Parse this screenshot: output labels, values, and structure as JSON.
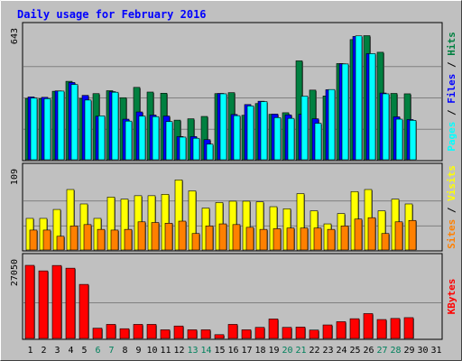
{
  "chart_data": {
    "type": "bar",
    "title": "Daily usage for February 2016",
    "categories": [
      "1",
      "2",
      "3",
      "4",
      "5",
      "6",
      "7",
      "8",
      "9",
      "10",
      "11",
      "12",
      "13",
      "14",
      "15",
      "16",
      "17",
      "18",
      "19",
      "20",
      "21",
      "22",
      "23",
      "24",
      "25",
      "26",
      "27",
      "28",
      "29",
      "30",
      "31"
    ],
    "weekend_days": [
      "6",
      "7",
      "13",
      "14",
      "20",
      "21",
      "27",
      "28"
    ],
    "panels": [
      {
        "id": "top",
        "ymax_label": "643",
        "ymax": 643,
        "series": [
          {
            "name": "Hits",
            "color": "#008040",
            "values": [
              314,
              313,
              351,
              402,
              314,
              339,
              354,
              318,
              371,
              347,
              341,
              203,
              210,
              222,
              339,
              344,
              228,
              288,
              233,
              241,
              507,
              357,
              327,
              493,
              616,
              636,
              551,
              340,
              338,
              null,
              null
            ]
          },
          {
            "name": "Files",
            "color": "#0000ff",
            "values": [
              322,
              320,
              353,
              396,
              330,
              223,
              349,
              208,
              245,
              229,
              224,
              119,
              119,
              103,
              340,
              232,
              283,
              300,
              234,
              230,
              233,
              210,
              359,
              492,
              632,
              544,
              342,
              220,
              206,
              null,
              null
            ]
          },
          {
            "name": "Pages",
            "color": "#00ffff",
            "values": [
              316,
              313,
              352,
              386,
              306,
              225,
              346,
              198,
              224,
              221,
              196,
              116,
              110,
              80,
              338,
              226,
              276,
              298,
              216,
              212,
              326,
              187,
              360,
              491,
              635,
              544,
              338,
              208,
              202,
              null,
              null
            ]
          }
        ]
      },
      {
        "id": "middle",
        "ymax_label": "109",
        "ymax": 109,
        "series": [
          {
            "name": "Visits",
            "color": "#ffff00",
            "values": [
              46,
              46,
              59,
              88,
              67,
              46,
              77,
              74,
              79,
              79,
              81,
              102,
              86,
              61,
              69,
              71,
              71,
              70,
              63,
              60,
              82,
              57,
              38,
              53,
              85,
              88,
              57,
              74,
              67,
              null,
              null
            ]
          },
          {
            "name": "Sites",
            "color": "#ff8000",
            "values": [
              29,
              29,
              20,
              35,
              37,
              30,
              29,
              30,
              41,
              40,
              39,
              42,
              24,
              35,
              38,
              37,
              33,
              30,
              31,
              32,
              32,
              32,
              30,
              35,
              45,
              47,
              24,
              41,
              43,
              null,
              null
            ]
          }
        ]
      },
      {
        "id": "bottom",
        "ymax_label": "27050",
        "ymax": 27050,
        "series": [
          {
            "name": "KBytes",
            "color": "#ff0000",
            "values": [
              27050,
              25000,
              27000,
              26000,
              20000,
              3800,
              5200,
              3600,
              5200,
              5200,
              3200,
              4600,
              3200,
              3200,
              1400,
              5200,
              3200,
              4100,
              7200,
              4100,
              4200,
              3100,
              5000,
              6200,
              7300,
              9200,
              7000,
              7400,
              7700,
              null,
              null
            ]
          }
        ]
      }
    ]
  }
}
